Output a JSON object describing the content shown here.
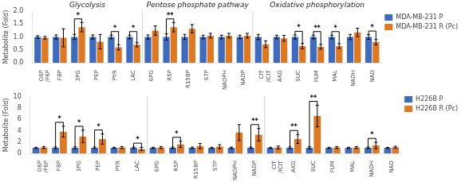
{
  "chart_data": [
    {
      "type": "bar",
      "categories": [
        "G6P\n/F6P",
        "FBP",
        "3PG",
        "PEP",
        "PYR",
        "LAC",
        "6PG",
        "R5P",
        "R15BP",
        "S7P",
        "NADPH",
        "NADP",
        "CIT\n/ICIT",
        "AKG",
        "SUC",
        "FUM",
        "MAL",
        "NADH",
        "NAD"
      ],
      "series": [
        {
          "name": "MDA-MB-231 P",
          "color": "#3c6bbf",
          "values": [
            1.0,
            1.0,
            1.0,
            1.0,
            1.0,
            1.0,
            1.0,
            1.0,
            1.0,
            1.0,
            1.0,
            1.0,
            1.0,
            1.0,
            1.0,
            1.0,
            1.0,
            1.0,
            1.0
          ],
          "errors": [
            0.05,
            0.08,
            0.1,
            0.08,
            0.07,
            0.07,
            0.08,
            0.12,
            0.1,
            0.07,
            0.07,
            0.07,
            0.1,
            0.07,
            0.08,
            0.07,
            0.07,
            0.1,
            0.09
          ]
        },
        {
          "name": "MDA-MB-231 R (Pc)",
          "color": "#e07820",
          "values": [
            0.97,
            0.97,
            1.38,
            0.82,
            0.6,
            0.7,
            1.25,
            1.38,
            1.32,
            1.05,
            1.05,
            1.05,
            0.72,
            0.95,
            0.65,
            0.62,
            0.65,
            1.18,
            0.8
          ],
          "errors": [
            0.05,
            0.35,
            0.18,
            0.28,
            0.1,
            0.08,
            0.18,
            0.18,
            0.16,
            0.09,
            0.09,
            0.09,
            0.13,
            0.11,
            0.1,
            0.09,
            0.09,
            0.16,
            0.1
          ]
        }
      ],
      "significance": [
        null,
        null,
        "*",
        null,
        "*",
        "*",
        null,
        "**",
        null,
        null,
        null,
        null,
        null,
        null,
        "*",
        "**",
        "*",
        null,
        "*"
      ],
      "sections": [
        {
          "name": "Glycolysis",
          "first": "G6P\n/F6P",
          "last": "LAC"
        },
        {
          "name": "Pentose phosphate pathway",
          "first": "6PG",
          "last": "NADP"
        },
        {
          "name": "Oxidative phosphorylation",
          "first": "CIT\n/ICIT",
          "last": "NAD"
        }
      ],
      "ylabel": "Metabolite (Fold)",
      "ylim": [
        0,
        2.0
      ],
      "yticks": [
        {
          "value": 0,
          "label": "0.0"
        },
        {
          "value": 0.5,
          "label": "0.5"
        },
        {
          "value": 1.0,
          "label": "1.0"
        },
        {
          "value": 1.5,
          "label": "1.5"
        },
        {
          "value": 2.0,
          "label": "2.0"
        }
      ],
      "grid": false,
      "legend": "right"
    },
    {
      "type": "bar",
      "categories": [
        "G6P\n/F6P",
        "FBP",
        "3PG",
        "PEP",
        "PYR",
        "LAC",
        "6PG",
        "R5P",
        "R15BP",
        "S7P",
        "NADPH",
        "NADP",
        "CIT\n/ICIT",
        "AKG",
        "SUC",
        "FUM",
        "MAL",
        "NADH",
        "NAD"
      ],
      "series": [
        {
          "name": "H226B P",
          "color": "#3c6bbf",
          "values": [
            1.0,
            1.0,
            1.0,
            1.0,
            1.0,
            1.0,
            1.0,
            1.0,
            1.0,
            1.0,
            1.0,
            1.0,
            1.0,
            1.0,
            1.0,
            1.0,
            1.0,
            1.0,
            1.0
          ],
          "errors": [
            0.1,
            0.15,
            0.18,
            0.15,
            0.1,
            0.12,
            0.1,
            0.13,
            0.13,
            0.1,
            0.13,
            0.13,
            0.1,
            0.16,
            0.18,
            0.1,
            0.1,
            0.13,
            0.08
          ]
        },
        {
          "name": "H226B R (Pc)",
          "color": "#e07820",
          "values": [
            1.05,
            3.85,
            3.0,
            2.55,
            1.05,
            0.8,
            1.05,
            1.6,
            1.3,
            1.2,
            3.7,
            3.3,
            1.05,
            2.55,
            6.6,
            1.05,
            1.05,
            1.4,
            1.1
          ],
          "errors": [
            0.18,
            0.95,
            1.1,
            0.9,
            0.18,
            0.28,
            0.18,
            0.55,
            0.45,
            0.35,
            1.4,
            1.1,
            0.25,
            0.8,
            1.9,
            0.18,
            0.18,
            0.55,
            0.18
          ]
        }
      ],
      "significance": [
        null,
        "*",
        "*",
        "*",
        null,
        "*",
        null,
        "*",
        null,
        null,
        null,
        "**",
        null,
        "**",
        "**",
        null,
        null,
        "*",
        null
      ],
      "ylabel": "Metabolite (Fold)",
      "ylim": [
        0,
        10
      ],
      "yticks": [
        0,
        2,
        4,
        6,
        8,
        10
      ],
      "grid": false,
      "legend": "right"
    }
  ]
}
